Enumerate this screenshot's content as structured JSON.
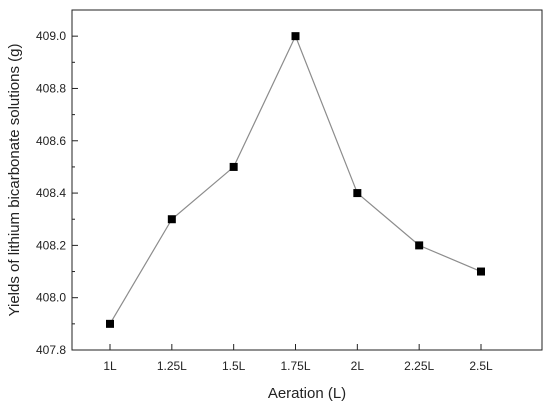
{
  "chart_data": {
    "type": "line",
    "title": "",
    "xlabel": "Aeration (L)",
    "ylabel": "Yields of lithium bicarbonate solutions (g)",
    "categories": [
      "1L",
      "1.25L",
      "1.5L",
      "1.75L",
      "2L",
      "2.25L",
      "2.5L"
    ],
    "series": [
      {
        "values": [
          407.9,
          408.3,
          408.5,
          409.0,
          408.4,
          408.2,
          408.1
        ]
      }
    ],
    "ylim": [
      407.8,
      409.1
    ],
    "yticks": [
      "407.8",
      "408.0",
      "408.2",
      "408.4",
      "408.6",
      "408.8",
      "409.0"
    ],
    "grid": false,
    "legend": "none",
    "line_color": "#8c8c8c",
    "marker_color": "#000000",
    "marker": "square"
  }
}
